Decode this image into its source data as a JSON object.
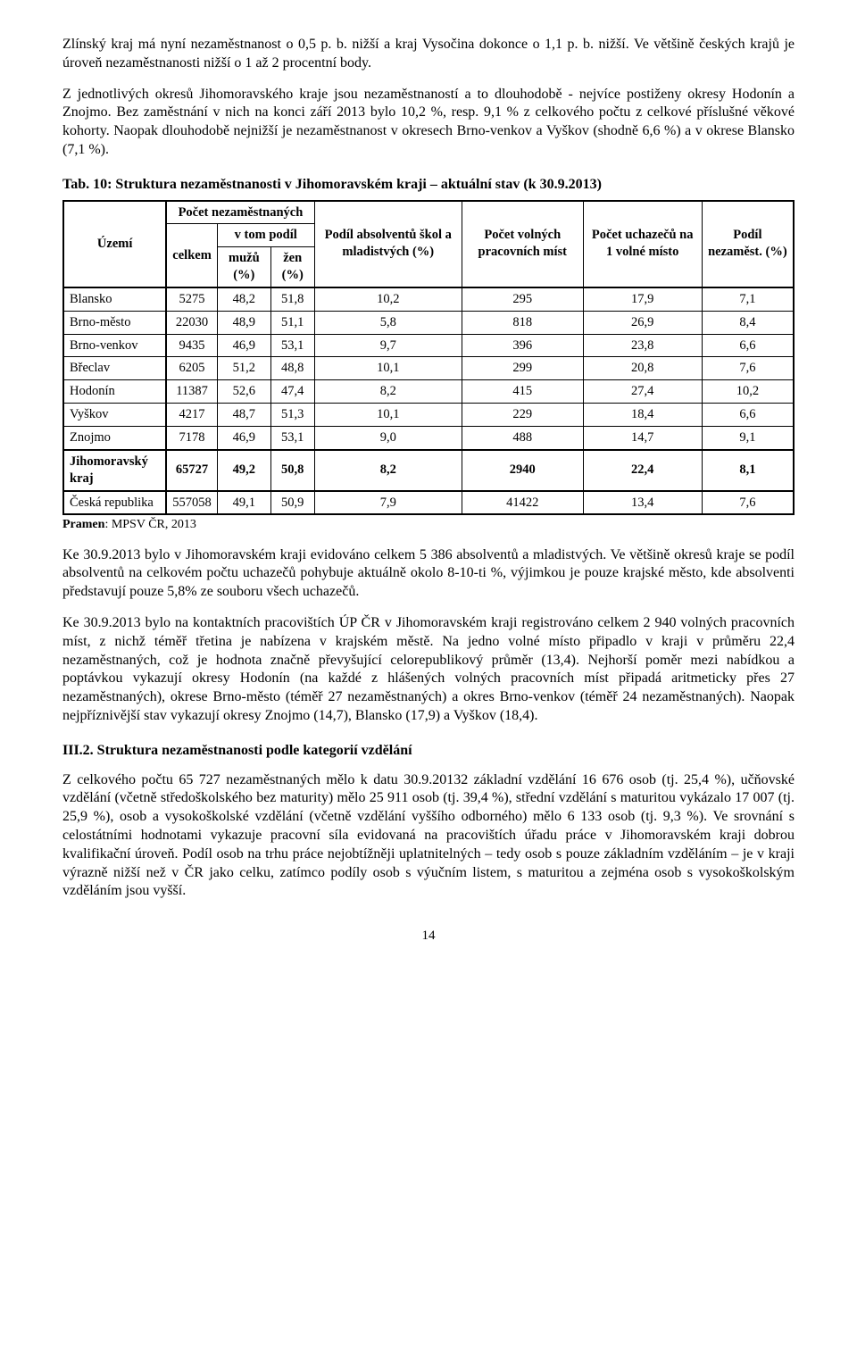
{
  "paragraphs": {
    "p1": "Zlínský kraj má nyní nezaměstnanost o 0,5 p. b. nižší a kraj Vysočina dokonce o 1,1 p. b. nižší. Ve většině českých krajů je úroveň nezaměstnanosti nižší o 1 až 2 procentní body.",
    "p2": "Z jednotlivých okresů Jihomoravského kraje jsou nezaměstnaností a to dlouhodobě - nejvíce postiženy okresy Hodonín a Znojmo. Bez zaměstnání v nich na konci září 2013 bylo 10,2 %, resp. 9,1 % z celkového počtu z celkové příslušné věkové kohorty. Naopak dlouhodobě nejnižší je nezaměstnanost v okresech Brno-venkov a Vyškov (shodně 6,6 %) a v okrese Blansko (7,1 %).",
    "p3": "Ke 30.9.2013 bylo v Jihomoravském kraji evidováno celkem 5 386 absolventů a mladistvých. Ve většině okresů kraje se podíl absolventů na celkovém počtu uchazečů pohybuje aktuálně okolo 8-10-ti %, výjimkou je pouze krajské město, kde absolventi představují pouze 5,8% ze souboru všech uchazečů.",
    "p4": "Ke 30.9.2013 bylo na kontaktních pracovištích ÚP ČR v Jihomoravském kraji registrováno celkem 2 940 volných pracovních míst, z nichž téměř třetina je nabízena v krajském městě. Na jedno volné místo připadlo v kraji v průměru 22,4 nezaměstnaných, což je hodnota značně převyšující celorepublikový průměr (13,4). Nejhorší poměr mezi nabídkou a poptávkou vykazují okresy Hodonín (na každé z hlášených volných pracovních míst připadá aritmeticky přes 27 nezaměstnaných), okrese Brno-město (téměř 27 nezaměstnaných) a okres Brno-venkov (téměř 24 nezaměstnaných). Naopak nejpříznivější stav vykazují okresy Znojmo (14,7), Blansko (17,9) a Vyškov (18,4).",
    "p5": "Z celkového počtu 65 727 nezaměstnaných mělo k datu 30.9.20132 základní vzdělání 16 676 osob (tj. 25,4 %), učňovské vzdělání (včetně středoškolského bez maturity) mělo 25 911 osob (tj. 39,4 %), střední vzdělání s maturitou vykázalo 17 007 (tj. 25,9 %), osob a vysokoškolské vzdělání (včetně vzdělání vyššího odborného) mělo 6 133 osob (tj. 9,3 %). Ve srovnání s celostátními hodnotami vykazuje pracovní síla evidovaná na pracovištích úřadu práce v Jihomoravském kraji dobrou kvalifikační úroveň. Podíl osob na trhu práce nejobtížněji uplatnitelných – tedy osob s pouze základním vzděláním – je v kraji výrazně nižší než v ČR jako celku, zatímco podíly osob s výučním listem, s maturitou a zejména osob s vysokoškolským vzděláním jsou vyšší."
  },
  "table": {
    "title": "Tab. 10: Struktura nezaměstnanosti v Jihomoravském kraji – aktuální stav (k 30.9.2013)",
    "headers": {
      "uzemi": "Území",
      "pocet_nezam": "Počet nezaměstnaných",
      "vtom": "v tom podíl",
      "celkem": "celkem",
      "muzu": "mužů (%)",
      "zen": "žen (%)",
      "podil_abs": "Podíl absolventů škol a mladistvých (%)",
      "pocet_volnych": "Počet volných pracovních míst",
      "pocet_uchazecu": "Počet uchazečů na 1 volné místo",
      "podil_nezam": "Podíl nezaměst. (%)"
    },
    "rows": [
      {
        "uzemi": "Blansko",
        "celkem": "5275",
        "muzu": "48,2",
        "zen": "51,8",
        "abs": "10,2",
        "volnych": "295",
        "uchazecu": "17,9",
        "nezam": "7,1"
      },
      {
        "uzemi": "Brno-město",
        "celkem": "22030",
        "muzu": "48,9",
        "zen": "51,1",
        "abs": "5,8",
        "volnych": "818",
        "uchazecu": "26,9",
        "nezam": "8,4"
      },
      {
        "uzemi": "Brno-venkov",
        "celkem": "9435",
        "muzu": "46,9",
        "zen": "53,1",
        "abs": "9,7",
        "volnych": "396",
        "uchazecu": "23,8",
        "nezam": "6,6"
      },
      {
        "uzemi": "Břeclav",
        "celkem": "6205",
        "muzu": "51,2",
        "zen": "48,8",
        "abs": "10,1",
        "volnych": "299",
        "uchazecu": "20,8",
        "nezam": "7,6"
      },
      {
        "uzemi": "Hodonín",
        "celkem": "11387",
        "muzu": "52,6",
        "zen": "47,4",
        "abs": "8,2",
        "volnych": "415",
        "uchazecu": "27,4",
        "nezam": "10,2"
      },
      {
        "uzemi": "Vyškov",
        "celkem": "4217",
        "muzu": "48,7",
        "zen": "51,3",
        "abs": "10,1",
        "volnych": "229",
        "uchazecu": "18,4",
        "nezam": "6,6"
      },
      {
        "uzemi": "Znojmo",
        "celkem": "7178",
        "muzu": "46,9",
        "zen": "53,1",
        "abs": "9,0",
        "volnych": "488",
        "uchazecu": "14,7",
        "nezam": "9,1"
      }
    ],
    "summary_row": {
      "uzemi": "Jihomoravský kraj",
      "celkem": "65727",
      "muzu": "49,2",
      "zen": "50,8",
      "abs": "8,2",
      "volnych": "2940",
      "uchazecu": "22,4",
      "nezam": "8,1"
    },
    "cr_row": {
      "uzemi": "Česká republika",
      "celkem": "557058",
      "muzu": "49,1",
      "zen": "50,9",
      "abs": "7,9",
      "volnych": "41422",
      "uchazecu": "13,4",
      "nezam": "7,6"
    },
    "source_label": "Pramen",
    "source_value": ": MPSV ČR, 2013"
  },
  "section_heading": "III.2.  Struktura nezaměstnanosti podle kategorií vzdělání",
  "page_number": "14"
}
